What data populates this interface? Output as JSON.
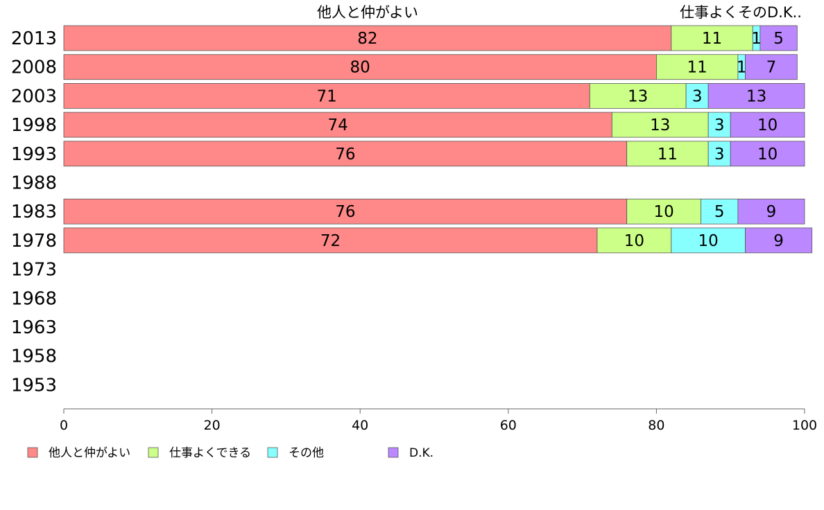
{
  "chart_data": {
    "type": "bar",
    "orientation": "horizontal",
    "stacked": true,
    "categories": [
      "2013",
      "2008",
      "2003",
      "1998",
      "1993",
      "1988",
      "1983",
      "1978",
      "1973",
      "1968",
      "1963",
      "1958",
      "1953"
    ],
    "series": [
      {
        "name": "他人と仲がよい",
        "color": "#ff8888",
        "values": [
          82,
          80,
          71,
          74,
          76,
          null,
          76,
          72,
          null,
          null,
          null,
          null,
          null
        ]
      },
      {
        "name": "仕事よくできる",
        "color": "#ccff88",
        "values": [
          11,
          11,
          13,
          13,
          11,
          null,
          10,
          10,
          null,
          null,
          null,
          null,
          null
        ]
      },
      {
        "name": "その他",
        "color": "#88ffff",
        "values": [
          1,
          1,
          3,
          3,
          3,
          null,
          5,
          10,
          null,
          null,
          null,
          null,
          null
        ]
      },
      {
        "name": "D.K.",
        "color": "#bb88ff",
        "values": [
          5,
          7,
          13,
          10,
          10,
          null,
          9,
          9,
          null,
          null,
          null,
          null,
          null
        ]
      }
    ],
    "top_labels": [
      "他人と仲がよい",
      "仕事よくその",
      "D.K.."
    ],
    "xlim": [
      0,
      100
    ],
    "xticks": [
      0,
      20,
      40,
      60,
      80,
      100
    ],
    "legend_position": "bottom"
  }
}
